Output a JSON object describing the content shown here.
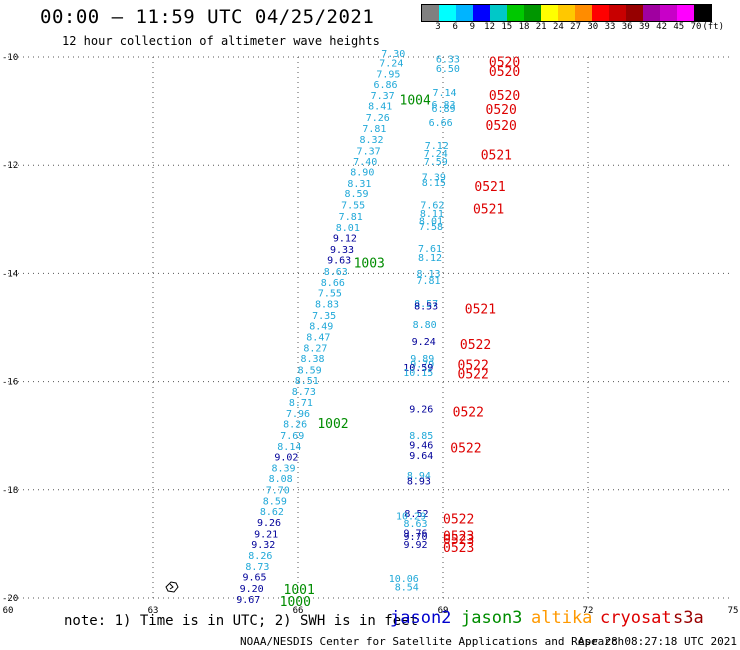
{
  "header": {
    "title": "00:00 – 11:59 UTC 04/25/2021",
    "subtitle": "12 hour collection of altimeter wave heights"
  },
  "legend": {
    "colors": [
      "#808080",
      "#00ffff",
      "#00b4ff",
      "#0000ff",
      "#00c8c8",
      "#00c800",
      "#009600",
      "#ffff00",
      "#ffc800",
      "#ff8c00",
      "#ff0000",
      "#c80000",
      "#960000",
      "#a000a0",
      "#c800c8",
      "#ff00ff",
      "#000000"
    ],
    "labels": [
      "3",
      "6",
      "9",
      "12",
      "15",
      "18",
      "21",
      "24",
      "27",
      "30",
      "33",
      "36",
      "39",
      "42",
      "45",
      "70",
      "(ft)"
    ]
  },
  "map": {
    "x_ticks": [
      "60",
      "63",
      "66",
      "69",
      "72",
      "75"
    ],
    "y_ticks": [
      "-10",
      "-12",
      "-14",
      "-16",
      "-18",
      "-20"
    ],
    "lon_range": [
      60,
      75
    ],
    "lat_range": [
      -20,
      -10
    ]
  },
  "colors": {
    "jason2": "#0000cc",
    "jason3": "#008c00",
    "altika": "#ff9900",
    "cryosat": "#dd0000",
    "s3a": "#990000",
    "light": "#20a8d8",
    "dark": "#000099"
  },
  "track_a": {
    "labels": [
      {
        "v": "7.30",
        "lon": 68.22,
        "lat": -10.0,
        "c": "light"
      },
      {
        "v": "7.24",
        "lon": 68.18,
        "lat": -10.18,
        "c": "light"
      },
      {
        "v": "7.95",
        "lon": 68.12,
        "lat": -10.38,
        "c": "light"
      },
      {
        "v": "6.86",
        "lon": 68.06,
        "lat": -10.57,
        "c": "light"
      },
      {
        "v": "7.37",
        "lon": 68.0,
        "lat": -10.78,
        "c": "light"
      },
      {
        "v": "8.41",
        "lon": 67.95,
        "lat": -10.97,
        "c": "light"
      },
      {
        "v": "7.26",
        "lon": 67.9,
        "lat": -11.18,
        "c": "light"
      },
      {
        "v": "7.81",
        "lon": 67.83,
        "lat": -11.39,
        "c": "light"
      },
      {
        "v": "8.32",
        "lon": 67.77,
        "lat": -11.59,
        "c": "light"
      },
      {
        "v": "7.37",
        "lon": 67.71,
        "lat": -11.8,
        "c": "light"
      },
      {
        "v": "7.40",
        "lon": 67.64,
        "lat": -12.0,
        "c": "light"
      },
      {
        "v": "8.90",
        "lon": 67.58,
        "lat": -12.19,
        "c": "light"
      },
      {
        "v": "8.31",
        "lon": 67.52,
        "lat": -12.4,
        "c": "light"
      },
      {
        "v": "8.59",
        "lon": 67.46,
        "lat": -12.59,
        "c": "light"
      },
      {
        "v": "7.55",
        "lon": 67.39,
        "lat": -12.8,
        "c": "light"
      },
      {
        "v": "7.81",
        "lon": 67.34,
        "lat": -13.01,
        "c": "light"
      },
      {
        "v": "8.01",
        "lon": 67.28,
        "lat": -13.22,
        "c": "light"
      },
      {
        "v": "9.12",
        "lon": 67.22,
        "lat": -13.41,
        "c": "dark"
      },
      {
        "v": "9.33",
        "lon": 67.16,
        "lat": -13.62,
        "c": "dark"
      },
      {
        "v": "9.63",
        "lon": 67.1,
        "lat": -13.82,
        "c": "dark"
      },
      {
        "v": "8.63",
        "lon": 67.03,
        "lat": -14.03,
        "c": "light"
      },
      {
        "v": "8.66",
        "lon": 66.97,
        "lat": -14.23,
        "c": "light"
      },
      {
        "v": "7.55",
        "lon": 66.91,
        "lat": -14.43,
        "c": "light"
      },
      {
        "v": "8.83",
        "lon": 66.85,
        "lat": -14.63,
        "c": "light"
      },
      {
        "v": "7.35",
        "lon": 66.79,
        "lat": -14.84,
        "c": "light"
      },
      {
        "v": "8.49",
        "lon": 66.73,
        "lat": -15.04,
        "c": "light"
      },
      {
        "v": "8.47",
        "lon": 66.67,
        "lat": -15.24,
        "c": "light"
      },
      {
        "v": "8.27",
        "lon": 66.61,
        "lat": -15.44,
        "c": "light"
      },
      {
        "v": "8.38",
        "lon": 66.55,
        "lat": -15.64,
        "c": "light"
      },
      {
        "v": "8.59",
        "lon": 66.49,
        "lat": -15.85,
        "c": "light"
      },
      {
        "v": "8.51",
        "lon": 66.43,
        "lat": -16.04,
        "c": "light"
      },
      {
        "v": "8.73",
        "lon": 66.37,
        "lat": -16.25,
        "c": "light"
      },
      {
        "v": "8.71",
        "lon": 66.31,
        "lat": -16.45,
        "c": "light"
      },
      {
        "v": "7.96",
        "lon": 66.25,
        "lat": -16.65,
        "c": "light"
      },
      {
        "v": "8.26",
        "lon": 66.19,
        "lat": -16.85,
        "c": "light"
      },
      {
        "v": "7.69",
        "lon": 66.13,
        "lat": -17.06,
        "c": "light"
      },
      {
        "v": "8.14",
        "lon": 66.07,
        "lat": -17.26,
        "c": "light"
      },
      {
        "v": "9.02",
        "lon": 66.01,
        "lat": -17.46,
        "c": "dark"
      },
      {
        "v": "8.39",
        "lon": 65.95,
        "lat": -17.66,
        "c": "light"
      },
      {
        "v": "8.08",
        "lon": 65.89,
        "lat": -17.86,
        "c": "light"
      },
      {
        "v": "7.70",
        "lon": 65.83,
        "lat": -18.07,
        "c": "light"
      },
      {
        "v": "8.59",
        "lon": 65.77,
        "lat": -18.27,
        "c": "light"
      },
      {
        "v": "8.62",
        "lon": 65.71,
        "lat": -18.47,
        "c": "light"
      },
      {
        "v": "9.26",
        "lon": 65.65,
        "lat": -18.67,
        "c": "dark"
      },
      {
        "v": "9.21",
        "lon": 65.59,
        "lat": -18.88,
        "c": "dark"
      },
      {
        "v": "9.32",
        "lon": 65.53,
        "lat": -19.08,
        "c": "dark"
      },
      {
        "v": "8.26",
        "lon": 65.47,
        "lat": -19.28,
        "c": "light"
      },
      {
        "v": "8.73",
        "lon": 65.41,
        "lat": -19.48,
        "c": "light"
      },
      {
        "v": "9.65",
        "lon": 65.35,
        "lat": -19.68,
        "c": "dark"
      },
      {
        "v": "9.20",
        "lon": 65.29,
        "lat": -19.89,
        "c": "dark"
      },
      {
        "v": "9.67",
        "lon": 65.22,
        "lat": -20.09,
        "c": "dark"
      }
    ],
    "times": [
      {
        "v": "1004",
        "lon": 68.1,
        "lat": -10.8
      },
      {
        "v": "1003",
        "lon": 67.15,
        "lat": -13.82
      },
      {
        "v": "1002",
        "lon": 66.4,
        "lat": -16.78
      },
      {
        "v": "1001",
        "lon": 65.7,
        "lat": -19.85
      },
      {
        "v": "1000",
        "lon": 65.62,
        "lat": -20.07
      }
    ]
  },
  "track_b": {
    "labels": [
      {
        "v": "6.33",
        "lon": 69.35,
        "lat": -10.1,
        "c": "light"
      },
      {
        "v": "6.50",
        "lon": 69.35,
        "lat": -10.28,
        "c": "light"
      },
      {
        "v": "7.14",
        "lon": 69.28,
        "lat": -10.72,
        "c": "light"
      },
      {
        "v": "6.83",
        "lon": 69.26,
        "lat": -10.94,
        "c": "light"
      },
      {
        "v": "6.89",
        "lon": 69.26,
        "lat": -11.02,
        "c": "light"
      },
      {
        "v": "6.66",
        "lon": 69.2,
        "lat": -11.28,
        "c": "light"
      },
      {
        "v": "7.12",
        "lon": 69.12,
        "lat": -11.7,
        "c": "light"
      },
      {
        "v": "7.24",
        "lon": 69.1,
        "lat": -11.85,
        "c": "light"
      },
      {
        "v": "7.59",
        "lon": 69.1,
        "lat": -12.0,
        "c": "light"
      },
      {
        "v": "7.39",
        "lon": 69.06,
        "lat": -12.28,
        "c": "light"
      },
      {
        "v": "8.15",
        "lon": 69.06,
        "lat": -12.38,
        "c": "light"
      },
      {
        "v": "7.62",
        "lon": 69.03,
        "lat": -12.8,
        "c": "light"
      },
      {
        "v": "8.11",
        "lon": 69.02,
        "lat": -12.96,
        "c": "light"
      },
      {
        "v": "8.01",
        "lon": 69.0,
        "lat": -13.1,
        "c": "light"
      },
      {
        "v": "7.58",
        "lon": 69.0,
        "lat": -13.2,
        "c": "light"
      },
      {
        "v": "7.61",
        "lon": 68.98,
        "lat": -13.6,
        "c": "light"
      },
      {
        "v": "8.12",
        "lon": 68.98,
        "lat": -13.77,
        "c": "light"
      },
      {
        "v": "8.13",
        "lon": 68.95,
        "lat": -14.07,
        "c": "light"
      },
      {
        "v": "7.81",
        "lon": 68.95,
        "lat": -14.2,
        "c": "light"
      },
      {
        "v": "8.57",
        "lon": 68.9,
        "lat": -14.62,
        "c": "light"
      },
      {
        "v": "8.53",
        "lon": 68.9,
        "lat": -14.67,
        "c": "dark"
      },
      {
        "v": "8.80",
        "lon": 68.87,
        "lat": -15.01,
        "c": "light"
      },
      {
        "v": "9.24",
        "lon": 68.85,
        "lat": -15.32,
        "c": "dark"
      },
      {
        "v": "9.89",
        "lon": 68.82,
        "lat": -15.64,
        "c": "light"
      },
      {
        "v": "9.79",
        "lon": 68.82,
        "lat": -15.74,
        "c": "light"
      },
      {
        "v": "10.59",
        "lon": 68.8,
        "lat": -15.8,
        "c": "dark"
      },
      {
        "v": "10.15",
        "lon": 68.8,
        "lat": -15.9,
        "c": "light"
      },
      {
        "v": "9.26",
        "lon": 68.8,
        "lat": -16.57,
        "c": "dark"
      },
      {
        "v": "8.85",
        "lon": 68.8,
        "lat": -17.06,
        "c": "light"
      },
      {
        "v": "9.46",
        "lon": 68.8,
        "lat": -17.24,
        "c": "dark"
      },
      {
        "v": "9.64",
        "lon": 68.8,
        "lat": -17.43,
        "c": "dark"
      },
      {
        "v": "8.94",
        "lon": 68.75,
        "lat": -17.8,
        "c": "light"
      },
      {
        "v": "8.93",
        "lon": 68.75,
        "lat": -17.9,
        "c": "dark"
      },
      {
        "v": "8.52",
        "lon": 68.7,
        "lat": -18.5,
        "c": "dark"
      },
      {
        "v": "10.29",
        "lon": 68.65,
        "lat": -18.55,
        "c": "light"
      },
      {
        "v": "8.63",
        "lon": 68.68,
        "lat": -18.69,
        "c": "light"
      },
      {
        "v": "9.76",
        "lon": 68.68,
        "lat": -18.86,
        "c": "dark"
      },
      {
        "v": "9.70",
        "lon": 68.68,
        "lat": -18.93,
        "c": "dark"
      },
      {
        "v": "9.92",
        "lon": 68.68,
        "lat": -19.08,
        "c": "dark"
      },
      {
        "v": "10.06",
        "lon": 68.5,
        "lat": -19.7,
        "c": "light"
      },
      {
        "v": "8.54",
        "lon": 68.5,
        "lat": -19.86,
        "c": "light"
      }
    ],
    "times": [
      {
        "v": "0520",
        "lon": 69.95,
        "lat": -10.1
      },
      {
        "v": "0520",
        "lon": 69.95,
        "lat": -10.28
      },
      {
        "v": "0520",
        "lon": 69.95,
        "lat": -10.72
      },
      {
        "v": "0520",
        "lon": 69.88,
        "lat": -10.98
      },
      {
        "v": "0520",
        "lon": 69.88,
        "lat": -11.28
      },
      {
        "v": "0521",
        "lon": 69.78,
        "lat": -11.82
      },
      {
        "v": "0521",
        "lon": 69.65,
        "lat": -12.4
      },
      {
        "v": "0521",
        "lon": 69.62,
        "lat": -12.82
      },
      {
        "v": "0521",
        "lon": 69.45,
        "lat": -14.67
      },
      {
        "v": "0522",
        "lon": 69.35,
        "lat": -15.32
      },
      {
        "v": "0522",
        "lon": 69.3,
        "lat": -15.7
      },
      {
        "v": "0522",
        "lon": 69.3,
        "lat": -15.87
      },
      {
        "v": "0522",
        "lon": 69.2,
        "lat": -16.57
      },
      {
        "v": "0522",
        "lon": 69.15,
        "lat": -17.24
      },
      {
        "v": "0522",
        "lon": 69.0,
        "lat": -18.55
      },
      {
        "v": "0523",
        "lon": 69.0,
        "lat": -18.86
      },
      {
        "v": "0523",
        "lon": 69.0,
        "lat": -18.93
      },
      {
        "v": "0523",
        "lon": 69.0,
        "lat": -19.08
      }
    ]
  },
  "note": "note: 1) Time is in UTC; 2) SWH is in feet",
  "satellites": [
    {
      "name": "jason2",
      "color": "#0000cc",
      "left": 390
    },
    {
      "name": "jason3",
      "color": "#008c00",
      "left": 461
    },
    {
      "name": "altika",
      "color": "#ff9900",
      "left": 531
    },
    {
      "name": "cryosat",
      "color": "#dd0000",
      "left": 600
    },
    {
      "name": "s3a",
      "color": "#990000",
      "left": 673
    }
  ],
  "credit": "NOAA/NESDIS Center for Satellite Applications and Research",
  "timestamp": "Apr 28 08:27:18 UTC 2021"
}
